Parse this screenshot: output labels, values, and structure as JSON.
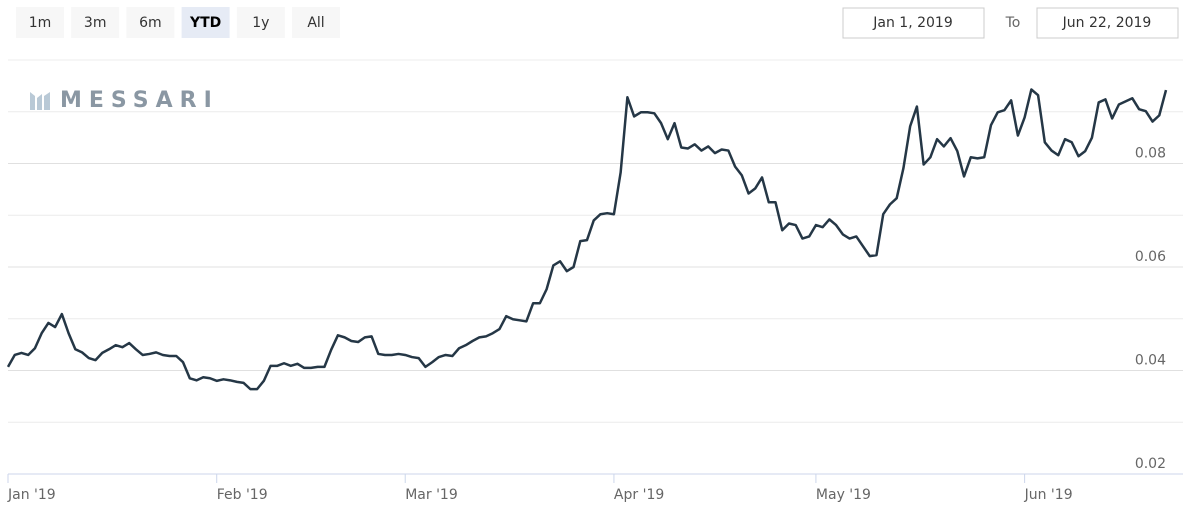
{
  "range_selector": {
    "buttons": [
      "1m",
      "3m",
      "6m",
      "YTD",
      "1y",
      "All"
    ],
    "selected": 3,
    "from": "Jan 1, 2019",
    "to_label": "To",
    "to": "Jun 22, 2019"
  },
  "watermark": "MESSARI",
  "chart_data": {
    "type": "line",
    "color": "#253746",
    "x": [
      0,
      1,
      2,
      3,
      4,
      5,
      6,
      7,
      8,
      9,
      10,
      11,
      12,
      13,
      14,
      15,
      16,
      17,
      18,
      19,
      20,
      21,
      22,
      23,
      24,
      25,
      26,
      27,
      28,
      29,
      30,
      31,
      32,
      33,
      34,
      35,
      36,
      37,
      38,
      39,
      40,
      41,
      42,
      43,
      44,
      45,
      46,
      47,
      48,
      49,
      50,
      51,
      52,
      53,
      54,
      55,
      56,
      57,
      58,
      59,
      60,
      61,
      62,
      63,
      64,
      65,
      66,
      67,
      68,
      69,
      70,
      71,
      72,
      73,
      74,
      75,
      76,
      77,
      78,
      79,
      80,
      81,
      82,
      83,
      84,
      85,
      86,
      87,
      88,
      89,
      90,
      91,
      92,
      93,
      94,
      95,
      96,
      97,
      98,
      99,
      100,
      101,
      102,
      103,
      104,
      105,
      106,
      107,
      108,
      109,
      110,
      111,
      112,
      113,
      114,
      115,
      116,
      117,
      118,
      119,
      120,
      121,
      122,
      123,
      124,
      125,
      126,
      127,
      128,
      129,
      130,
      131,
      132,
      133,
      134,
      135,
      136,
      137,
      138,
      139,
      140,
      141,
      142,
      143,
      144,
      145,
      146,
      147,
      148,
      149,
      150,
      151,
      152,
      153,
      154,
      155,
      156,
      157,
      158,
      159,
      160,
      161,
      162,
      163,
      164,
      165,
      166,
      167,
      168,
      169,
      170,
      171,
      172
    ],
    "values": [
      0.0407,
      0.043,
      0.0434,
      0.043,
      0.0443,
      0.0472,
      0.0492,
      0.0484,
      0.0509,
      0.0472,
      0.0441,
      0.0435,
      0.0424,
      0.042,
      0.0434,
      0.0441,
      0.0449,
      0.0445,
      0.0453,
      0.0441,
      0.043,
      0.0432,
      0.0435,
      0.043,
      0.0428,
      0.0428,
      0.0416,
      0.0385,
      0.0381,
      0.0387,
      0.0385,
      0.038,
      0.0383,
      0.0381,
      0.0378,
      0.0376,
      0.0364,
      0.0364,
      0.038,
      0.0409,
      0.0409,
      0.0414,
      0.0409,
      0.0413,
      0.0405,
      0.0405,
      0.0407,
      0.0407,
      0.044,
      0.0468,
      0.0464,
      0.0457,
      0.0455,
      0.0464,
      0.0466,
      0.0432,
      0.043,
      0.043,
      0.0432,
      0.043,
      0.0426,
      0.0424,
      0.0407,
      0.0416,
      0.0426,
      0.043,
      0.0428,
      0.0443,
      0.0449,
      0.0457,
      0.0464,
      0.0466,
      0.0472,
      0.048,
      0.0505,
      0.0499,
      0.0497,
      0.0495,
      0.053,
      0.053,
      0.0557,
      0.0603,
      0.0611,
      0.0592,
      0.06,
      0.065,
      0.0652,
      0.069,
      0.0702,
      0.0704,
      0.0702,
      0.0783,
      0.0928,
      0.0891,
      0.0899,
      0.0899,
      0.0897,
      0.0878,
      0.0847,
      0.0878,
      0.0831,
      0.0829,
      0.0837,
      0.0825,
      0.0833,
      0.082,
      0.0827,
      0.0825,
      0.0794,
      0.0777,
      0.0742,
      0.0752,
      0.0773,
      0.0725,
      0.0725,
      0.0671,
      0.0684,
      0.0681,
      0.0655,
      0.0659,
      0.0681,
      0.0677,
      0.0692,
      0.0681,
      0.0663,
      0.0655,
      0.0659,
      0.064,
      0.0621,
      0.0623,
      0.0702,
      0.0721,
      0.0733,
      0.0791,
      0.0872,
      0.091,
      0.0798,
      0.0812,
      0.0847,
      0.0833,
      0.0849,
      0.0824,
      0.0775,
      0.0812,
      0.081,
      0.0812,
      0.0874,
      0.0899,
      0.0903,
      0.0922,
      0.0854,
      0.0889,
      0.0943,
      0.0932,
      0.0841,
      0.0825,
      0.0816,
      0.0847,
      0.0841,
      0.0814,
      0.0824,
      0.085,
      0.0918,
      0.0924,
      0.0887,
      0.0914,
      0.092,
      0.0926,
      0.0905,
      0.0901,
      0.0881,
      0.0893,
      0.0942
    ],
    "xlim": [
      0,
      172
    ],
    "xticks": [
      {
        "value": 0,
        "label": "Jan '19"
      },
      {
        "value": 31,
        "label": "Feb '19"
      },
      {
        "value": 59,
        "label": "Mar '19"
      },
      {
        "value": 90,
        "label": "Apr '19"
      },
      {
        "value": 120,
        "label": "May '19"
      },
      {
        "value": 151,
        "label": "Jun '19"
      }
    ],
    "ylim": [
      0.02,
      0.1
    ],
    "yticks": [
      0.02,
      0.04,
      0.06,
      0.08
    ],
    "minor_yticks": [
      0.03,
      0.05,
      0.07,
      0.09,
      0.1
    ],
    "grid": true
  }
}
